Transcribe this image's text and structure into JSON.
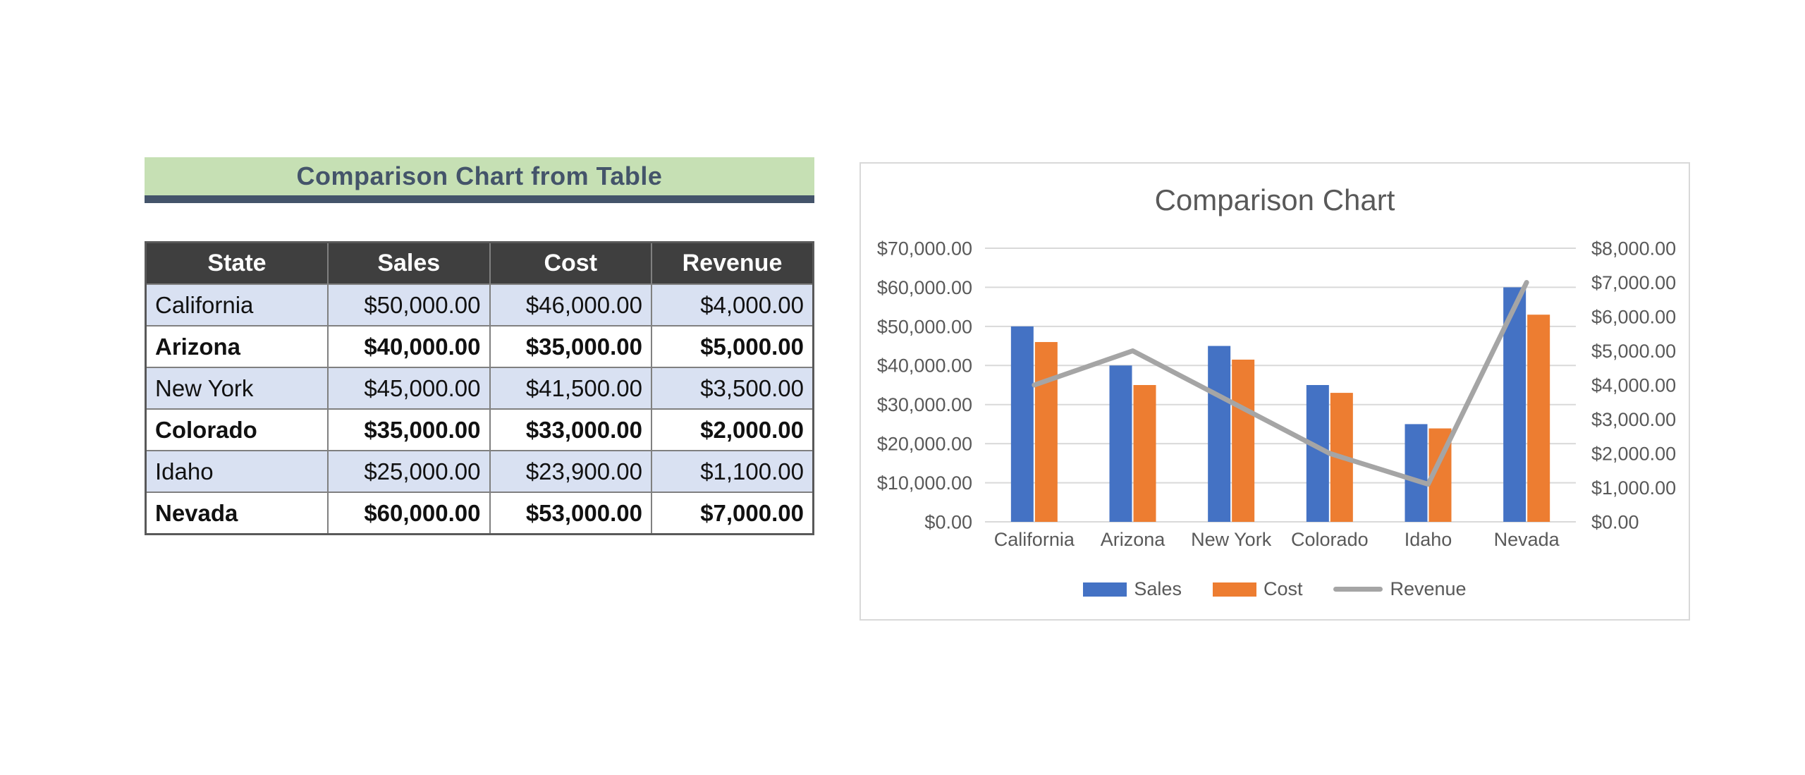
{
  "table_section": {
    "banner": {
      "title": "Comparison Chart from Table",
      "background": "#c6e0b4",
      "text_color": "#44546a",
      "underline_color": "#44546a"
    },
    "table": {
      "headers": [
        "State",
        "Sales",
        "Cost",
        "Revenue"
      ],
      "rows": [
        {
          "state": "California",
          "sales": "$50,000.00",
          "cost": "$46,000.00",
          "revenue": "$4,000.00"
        },
        {
          "state": "Arizona",
          "sales": "$40,000.00",
          "cost": "$35,000.00",
          "revenue": "$5,000.00"
        },
        {
          "state": "New York",
          "sales": "$45,000.00",
          "cost": "$41,500.00",
          "revenue": "$3,500.00"
        },
        {
          "state": "Colorado",
          "sales": "$35,000.00",
          "cost": "$33,000.00",
          "revenue": "$2,000.00"
        },
        {
          "state": "Idaho",
          "sales": "$25,000.00",
          "cost": "$23,900.00",
          "revenue": "$1,100.00"
        },
        {
          "state": "Nevada",
          "sales": "$60,000.00",
          "cost": "$53,000.00",
          "revenue": "$7,000.00"
        }
      ],
      "header_bg": "#3f3f3f",
      "header_text_color": "#ffffff",
      "stripe_color": "#d9e1f2"
    }
  },
  "chart_data": {
    "type": "combo",
    "title": "Comparison Chart",
    "categories": [
      "California",
      "Arizona",
      "New York",
      "Colorado",
      "Idaho",
      "Nevada"
    ],
    "series": [
      {
        "name": "Sales",
        "type": "bar",
        "axis": "left",
        "color": "#4472c4",
        "values": [
          50000,
          40000,
          45000,
          35000,
          25000,
          60000
        ]
      },
      {
        "name": "Cost",
        "type": "bar",
        "axis": "left",
        "color": "#ed7d31",
        "values": [
          46000,
          35000,
          41500,
          33000,
          23900,
          53000
        ]
      },
      {
        "name": "Revenue",
        "type": "line",
        "axis": "right",
        "color": "#a5a5a5",
        "values": [
          4000,
          5000,
          3500,
          2000,
          1100,
          7000
        ]
      }
    ],
    "left_axis": {
      "min": 0,
      "max": 70000,
      "step": 10000,
      "ticks": [
        "$70,000.00",
        "$60,000.00",
        "$50,000.00",
        "$40,000.00",
        "$30,000.00",
        "$20,000.00",
        "$10,000.00",
        "$0.00"
      ]
    },
    "right_axis": {
      "min": 0,
      "max": 8000,
      "step": 1000,
      "ticks": [
        "$8,000.00",
        "$7,000.00",
        "$6,000.00",
        "$5,000.00",
        "$4,000.00",
        "$3,000.00",
        "$2,000.00",
        "$1,000.00",
        "$0.00"
      ]
    },
    "legend": {
      "position": "bottom",
      "labels": [
        "Sales",
        "Cost",
        "Revenue"
      ]
    },
    "grid": true,
    "gridline_color": "#d9d9d9",
    "axis_text_color": "#595959",
    "title_color": "#595959"
  }
}
